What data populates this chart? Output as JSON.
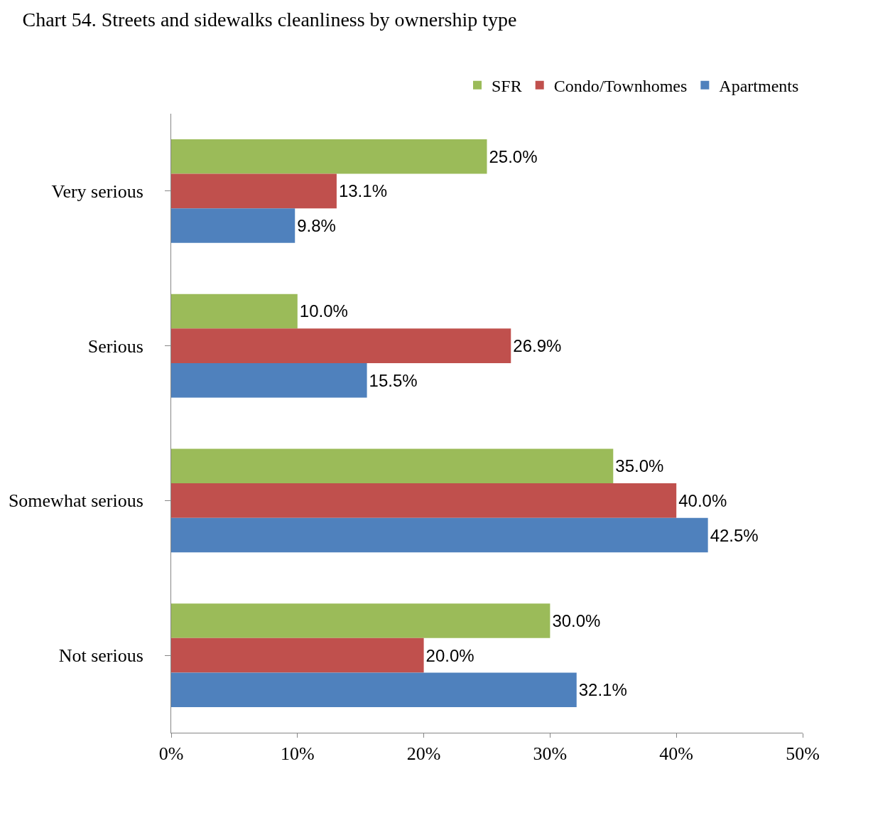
{
  "chart_data": {
    "type": "bar",
    "orientation": "horizontal",
    "title": "Chart 54. Streets and sidewalks cleanliness by ownership type",
    "categories": [
      "Very serious",
      "Serious",
      "Somewhat serious",
      "Not serious"
    ],
    "series": [
      {
        "name": "SFR",
        "color": "#9bbb59",
        "values": [
          25.0,
          10.0,
          35.0,
          30.0
        ],
        "value_labels": [
          "25.0%",
          "10.0%",
          "35.0%",
          "30.0%"
        ]
      },
      {
        "name": "Condo/Townhomes",
        "color": "#c0504d",
        "values": [
          13.1,
          26.9,
          40.0,
          20.0
        ],
        "value_labels": [
          "13.1%",
          "26.9%",
          "40.0%",
          "20.0%"
        ]
      },
      {
        "name": "Apartments",
        "color": "#4f81bd",
        "values": [
          9.8,
          15.5,
          42.5,
          32.1
        ],
        "value_labels": [
          "9.8%",
          "15.5%",
          "42.5%",
          "32.1%"
        ]
      }
    ],
    "xlim": [
      0,
      50
    ],
    "xticks": [
      {
        "value": 0,
        "label": "0%"
      },
      {
        "value": 10,
        "label": "10%"
      },
      {
        "value": 20,
        "label": "20%"
      },
      {
        "value": 30,
        "label": "30%"
      },
      {
        "value": 40,
        "label": "40%"
      },
      {
        "value": 50,
        "label": "50%"
      }
    ],
    "legend": "top right"
  }
}
